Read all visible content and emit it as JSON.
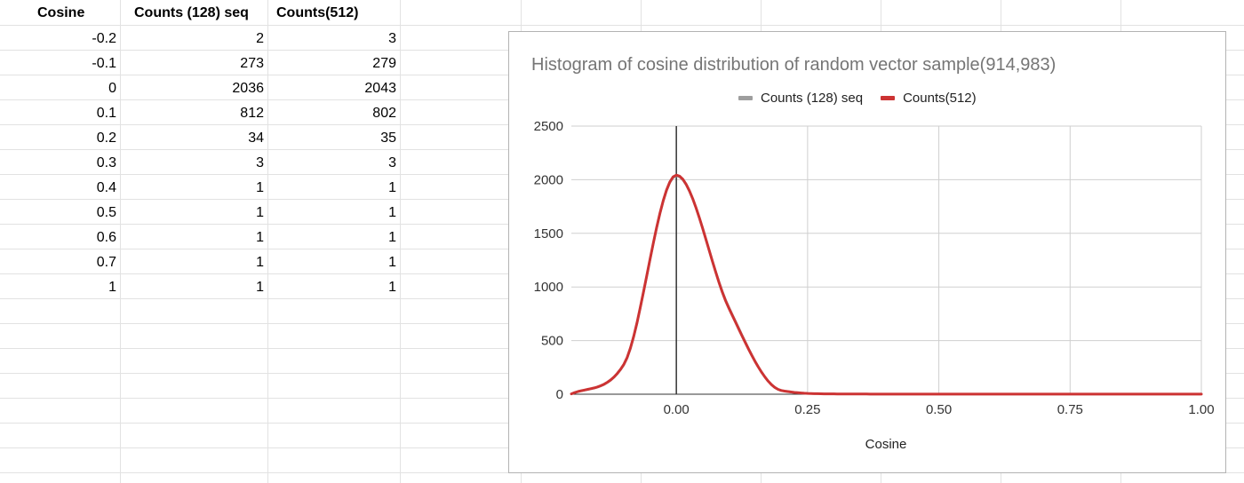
{
  "sheet": {
    "headers": [
      "Cosine",
      "Counts (128) seq",
      "Counts(512)"
    ],
    "rows": [
      [
        "-0.2",
        "2",
        "3"
      ],
      [
        "-0.1",
        "273",
        "279"
      ],
      [
        "0",
        "2036",
        "2043"
      ],
      [
        "0.1",
        "812",
        "802"
      ],
      [
        "0.2",
        "34",
        "35"
      ],
      [
        "0.3",
        "3",
        "3"
      ],
      [
        "0.4",
        "1",
        "1"
      ],
      [
        "0.5",
        "1",
        "1"
      ],
      [
        "0.6",
        "1",
        "1"
      ],
      [
        "0.7",
        "1",
        "1"
      ],
      [
        "1",
        "1",
        "1"
      ]
    ]
  },
  "chart_data": {
    "type": "line",
    "title": "Histogram of cosine distribution of random vector sample(914,983)",
    "xlabel": "Cosine",
    "ylabel": "",
    "x": [
      -0.2,
      -0.1,
      0,
      0.1,
      0.2,
      0.3,
      0.4,
      0.5,
      0.6,
      0.7,
      1
    ],
    "series": [
      {
        "name": "Counts (128) seq",
        "color": "#9e9e9e",
        "values": [
          2,
          273,
          2036,
          812,
          34,
          3,
          1,
          1,
          1,
          1,
          1
        ]
      },
      {
        "name": "Counts(512)",
        "color": "#cc3333",
        "values": [
          3,
          279,
          2043,
          802,
          35,
          3,
          1,
          1,
          1,
          1,
          1
        ]
      }
    ],
    "xlim": [
      -0.2,
      1.0
    ],
    "ylim": [
      0,
      2500
    ],
    "xticks": [
      "0.00",
      "0.25",
      "0.50",
      "0.75",
      "1.00"
    ],
    "yticks": [
      "0",
      "500",
      "1000",
      "1500",
      "2000",
      "2500"
    ],
    "grid": true,
    "legend_position": "top"
  }
}
